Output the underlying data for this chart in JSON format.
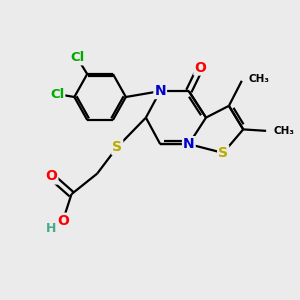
{
  "background_color": "#ebebeb",
  "atom_colors": {
    "C": "#000000",
    "N": "#0000cc",
    "O": "#ff0000",
    "S": "#bbaa00",
    "Cl": "#00aa00",
    "H": "#44aa88"
  },
  "bond_color": "#000000",
  "figsize": [
    3.0,
    3.0
  ],
  "dpi": 100
}
